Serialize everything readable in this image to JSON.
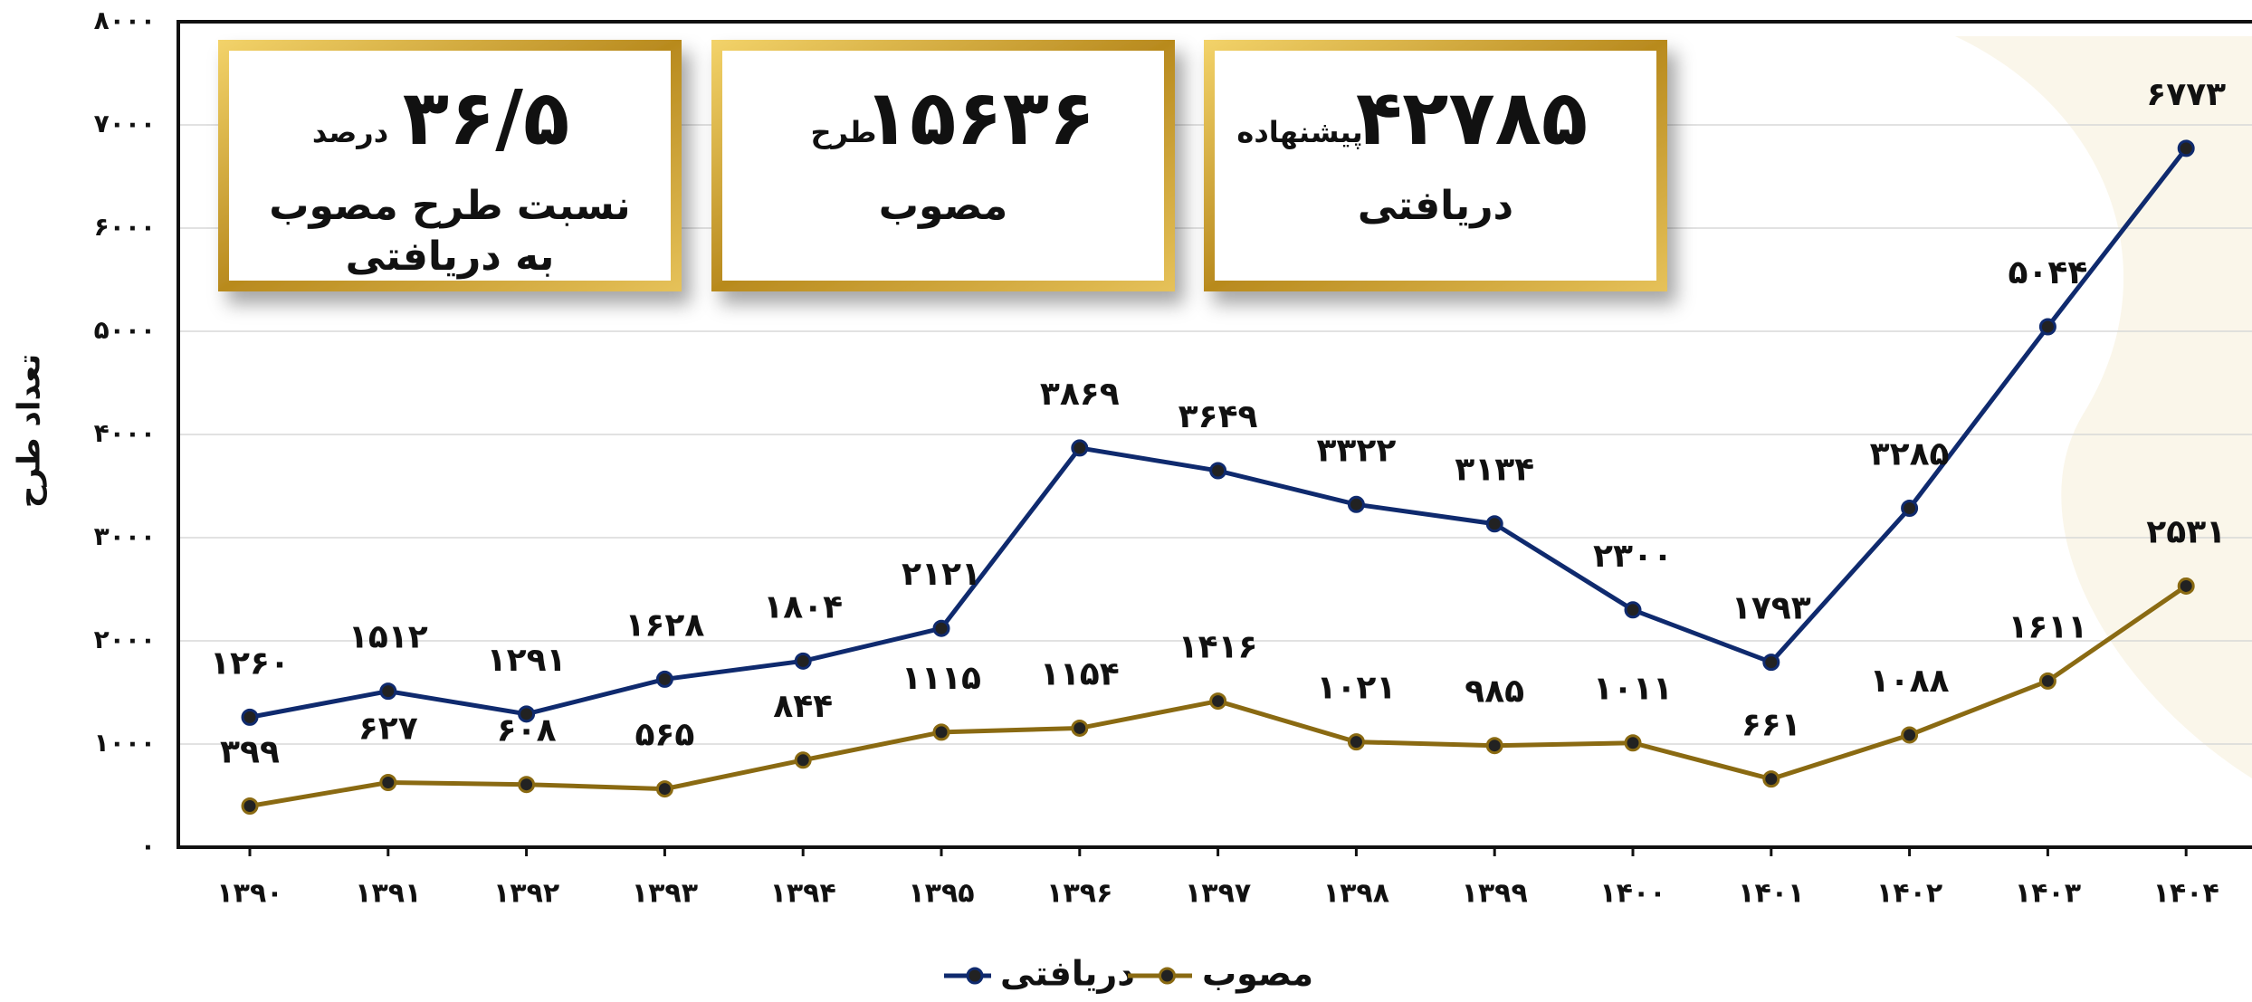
{
  "chart_data": {
    "type": "line",
    "y_label": "تعداد طرح",
    "categories": [
      "۱۳۹۰",
      "۱۳۹۱",
      "۱۳۹۲",
      "۱۳۹۳",
      "۱۳۹۴",
      "۱۳۹۵",
      "۱۳۹۶",
      "۱۳۹۷",
      "۱۳۹۸",
      "۱۳۹۹",
      "۱۴۰۰",
      "۱۴۰۱",
      "۱۴۰۲",
      "۱۴۰۳",
      "۱۴۰۴"
    ],
    "series": [
      {
        "name": "دریافتی",
        "color": "#0f2a6e",
        "values": [
          1260,
          1512,
          1291,
          1628,
          1804,
          2121,
          3869,
          3649,
          3322,
          3134,
          2300,
          1793,
          3285,
          5044,
          6773
        ],
        "value_labels": [
          "۱۲۶۰",
          "۱۵۱۲",
          "۱۲۹۱",
          "۱۶۲۸",
          "۱۸۰۴",
          "۲۱۲۱",
          "۳۸۶۹",
          "۳۶۴۹",
          "۳۳۲۲",
          "۳۱۳۴",
          "۲۳۰۰",
          "۱۷۹۳",
          "۳۲۸۵",
          "۵۰۴۴",
          "۶۷۷۳"
        ]
      },
      {
        "name": "مصوب",
        "color": "#8a6a12",
        "values": [
          399,
          627,
          608,
          565,
          844,
          1115,
          1154,
          1416,
          1021,
          985,
          1011,
          661,
          1088,
          1611,
          2531
        ],
        "value_labels": [
          "۳۹۹",
          "۶۲۷",
          "۶۰۸",
          "۵۶۵",
          "۸۴۴",
          "۱۱۱۵",
          "۱۱۵۴",
          "۱۴۱۶",
          "۱۰۲۱",
          "۹۸۵",
          "۱۰۱۱",
          "۶۶۱",
          "۱۰۸۸",
          "۱۶۱۱",
          "۲۵۳۱"
        ]
      }
    ],
    "ylim": [
      0,
      8000
    ],
    "yticks": [
      {
        "value": 0,
        "label": "۰"
      },
      {
        "value": 1000,
        "label": "۱۰۰۰"
      },
      {
        "value": 2000,
        "label": "۲۰۰۰"
      },
      {
        "value": 3000,
        "label": "۳۰۰۰"
      },
      {
        "value": 4000,
        "label": "۴۰۰۰"
      },
      {
        "value": 5000,
        "label": "۵۰۰۰"
      },
      {
        "value": 6000,
        "label": "۶۰۰۰"
      },
      {
        "value": 7000,
        "label": "۷۰۰۰"
      },
      {
        "value": 8000,
        "label": "۸۰۰۰"
      }
    ],
    "grid": true,
    "legend": "bottom"
  },
  "cards": [
    {
      "number": "۳۶/۵",
      "unit": "درصد",
      "caption": [
        "نسبت طرح مصوب",
        "به دریافتی"
      ]
    },
    {
      "number": "۱۵۶۳۶",
      "unit": "طرح",
      "caption": [
        "مصوب"
      ]
    },
    {
      "number": "۴۲۷۸۵",
      "unit": "پیشنهاده",
      "caption": [
        "دریافتی"
      ]
    }
  ]
}
